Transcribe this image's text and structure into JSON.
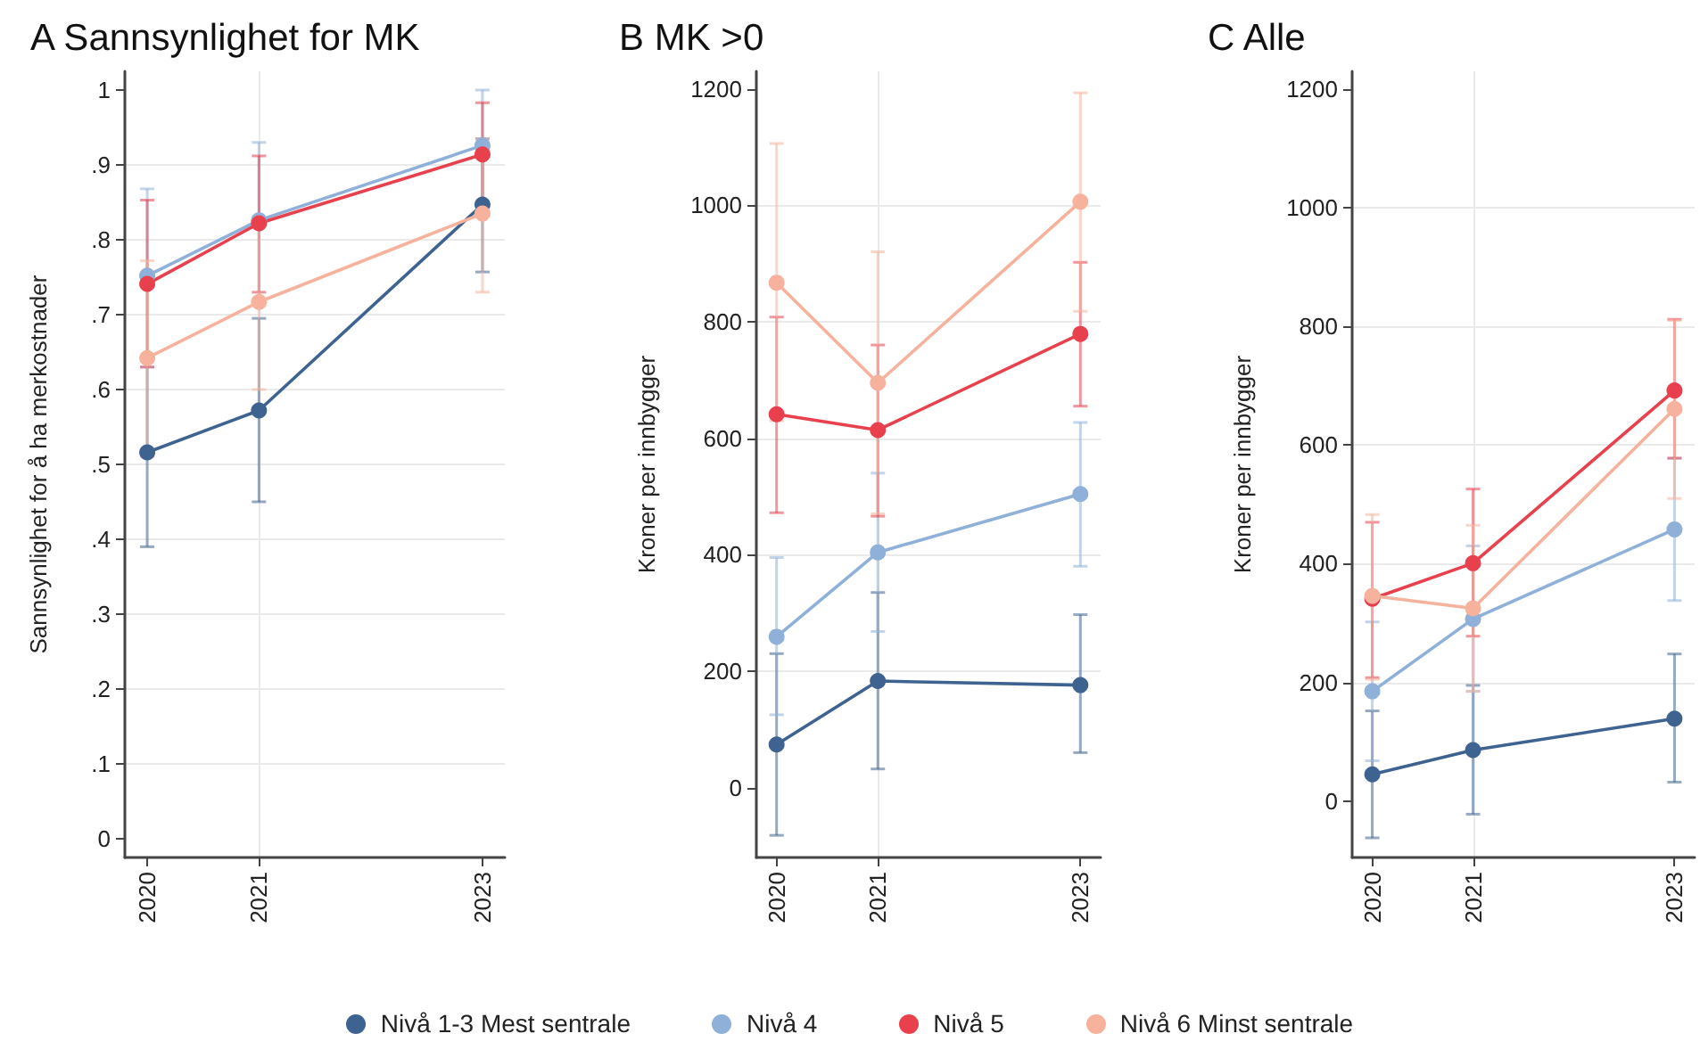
{
  "chart_data": [
    {
      "type": "line",
      "title": "A Sannsynlighet for MK",
      "ylabel": "Sannsynlighet for å ha merkostnader",
      "x": [
        2020,
        2021,
        2023
      ],
      "xlim": [
        2019.8,
        2023.2
      ],
      "xticks": [
        2020,
        2021,
        2023
      ],
      "ylim": [
        -0.025,
        1.025
      ],
      "yticks": [
        {
          "value": 0,
          "label": "0"
        },
        {
          "value": 0.1,
          "label": ".1"
        },
        {
          "value": 0.2,
          "label": ".2"
        },
        {
          "value": 0.3,
          "label": ".3"
        },
        {
          "value": 0.4,
          "label": ".4"
        },
        {
          "value": 0.5,
          "label": ".5"
        },
        {
          "value": 0.6,
          "label": ".6"
        },
        {
          "value": 0.7,
          "label": ".7"
        },
        {
          "value": 0.8,
          "label": ".8"
        },
        {
          "value": 0.9,
          "label": ".9"
        },
        {
          "value": 1,
          "label": "1"
        }
      ],
      "grid": true,
      "marker": "circle",
      "legend": "bottom",
      "series": [
        {
          "name": "Nivå 1-3 Mest sentrale",
          "color": "#3f6390",
          "values": [
            0.516,
            0.572,
            0.847
          ],
          "errors": [
            [
              0.39,
              0.64
            ],
            [
              0.45,
              0.695
            ],
            [
              0.757,
              0.935
            ]
          ]
        },
        {
          "name": "Nivå 4",
          "color": "#8fb0d8",
          "values": [
            0.752,
            0.826,
            0.926
          ],
          "errors": [
            [
              0.63,
              0.868
            ],
            [
              0.72,
              0.93
            ],
            [
              0.85,
              1.0
            ]
          ]
        },
        {
          "name": "Nivå 5",
          "color": "#e8404c",
          "values": [
            0.741,
            0.822,
            0.914
          ],
          "errors": [
            [
              0.63,
              0.853
            ],
            [
              0.73,
              0.912
            ],
            [
              0.845,
              0.983
            ]
          ]
        },
        {
          "name": "Nivå 6 Minst sentrale",
          "color": "#f6b29c",
          "values": [
            0.642,
            0.717,
            0.835
          ],
          "errors": [
            [
              0.51,
              0.772
            ],
            [
              0.6,
              0.83
            ],
            [
              0.73,
              0.935
            ]
          ]
        }
      ]
    },
    {
      "type": "line",
      "title": "B MK >0",
      "ylabel": "Kroner per innbygger",
      "x": [
        2020,
        2021,
        2023
      ],
      "xlim": [
        2019.8,
        2023.2
      ],
      "xticks": [
        2020,
        2021,
        2023
      ],
      "ylim": [
        -120,
        1230
      ],
      "yticks": [
        0,
        200,
        400,
        600,
        800,
        1000,
        1200
      ],
      "grid": true,
      "marker": "circle",
      "series": [
        {
          "name": "Nivå 1-3 Mest sentrale",
          "color": "#3f6390",
          "values": [
            74,
            183,
            176
          ],
          "errors": [
            [
              -82,
              230
            ],
            [
              32,
              335
            ],
            [
              60,
              297
            ]
          ]
        },
        {
          "name": "Nivå 4",
          "color": "#8fb0d8",
          "values": [
            259,
            404,
            504
          ],
          "errors": [
            [
              125,
              395
            ],
            [
              268,
              540
            ],
            [
              380,
              627
            ]
          ]
        },
        {
          "name": "Nivå 5",
          "color": "#e8404c",
          "values": [
            641,
            614,
            779
          ],
          "errors": [
            [
              472,
              808
            ],
            [
              466,
              760
            ],
            [
              655,
              902
            ]
          ]
        },
        {
          "name": "Nivå 6 Minst sentrale",
          "color": "#f6b29c",
          "values": [
            867,
            695,
            1006
          ],
          "errors": [
            [
              630,
              1106
            ],
            [
              470,
              920
            ],
            [
              818,
              1193
            ]
          ]
        }
      ]
    },
    {
      "type": "line",
      "title": "C Alle",
      "ylabel": "Kroner per innbygger",
      "x": [
        2020,
        2021,
        2023
      ],
      "xlim": [
        2019.8,
        2023.2
      ],
      "xticks": [
        2020,
        2021,
        2023
      ],
      "ylim": [
        -95,
        1230
      ],
      "yticks": [
        0,
        200,
        400,
        600,
        800,
        1000,
        1200
      ],
      "grid": true,
      "marker": "circle",
      "series": [
        {
          "name": "Nivå 1-3 Mest sentrale",
          "color": "#3f6390",
          "values": [
            45,
            86,
            139
          ],
          "errors": [
            [
              -62,
              152
            ],
            [
              -22,
              195
            ],
            [
              32,
              248
            ]
          ]
        },
        {
          "name": "Nivå 4",
          "color": "#8fb0d8",
          "values": [
            185,
            307,
            458
          ],
          "errors": [
            [
              68,
              302
            ],
            [
              185,
              430
            ],
            [
              338,
              578
            ]
          ]
        },
        {
          "name": "Nivå 5",
          "color": "#e8404c",
          "values": [
            341,
            401,
            692
          ],
          "errors": [
            [
              208,
              470
            ],
            [
              278,
              526
            ],
            [
              578,
              812
            ]
          ]
        },
        {
          "name": "Nivå 6 Minst sentrale",
          "color": "#f6b29c",
          "values": [
            346,
            325,
            661
          ],
          "errors": [
            [
              205,
              483
            ],
            [
              185,
              465
            ],
            [
              510,
              810
            ]
          ]
        }
      ]
    }
  ]
}
